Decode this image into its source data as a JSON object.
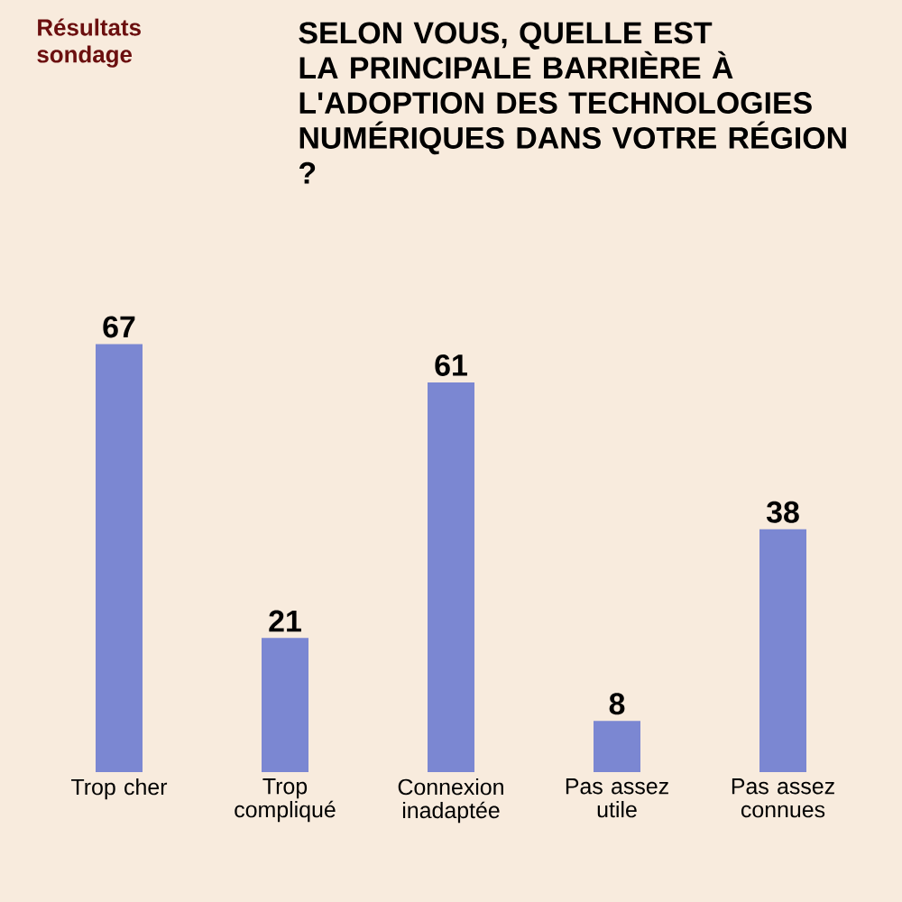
{
  "chart_data": {
    "type": "bar",
    "title": "SELON VOUS, QUELLE EST LA PRINCIPALE BARRIÈRE À L'ADOPTION DES TECHNOLOGIES NUMÉRIQUES DANS VOTRE RÉGION ?",
    "subtitle": "Résultats sondage",
    "categories": [
      "Trop cher",
      "Trop compliqué",
      "Connexion inadaptée",
      "Pas assez utile",
      "Pas assez connues"
    ],
    "values": [
      67,
      21,
      61,
      8,
      38
    ],
    "color": "#7b87d2",
    "data_labels": true
  }
}
